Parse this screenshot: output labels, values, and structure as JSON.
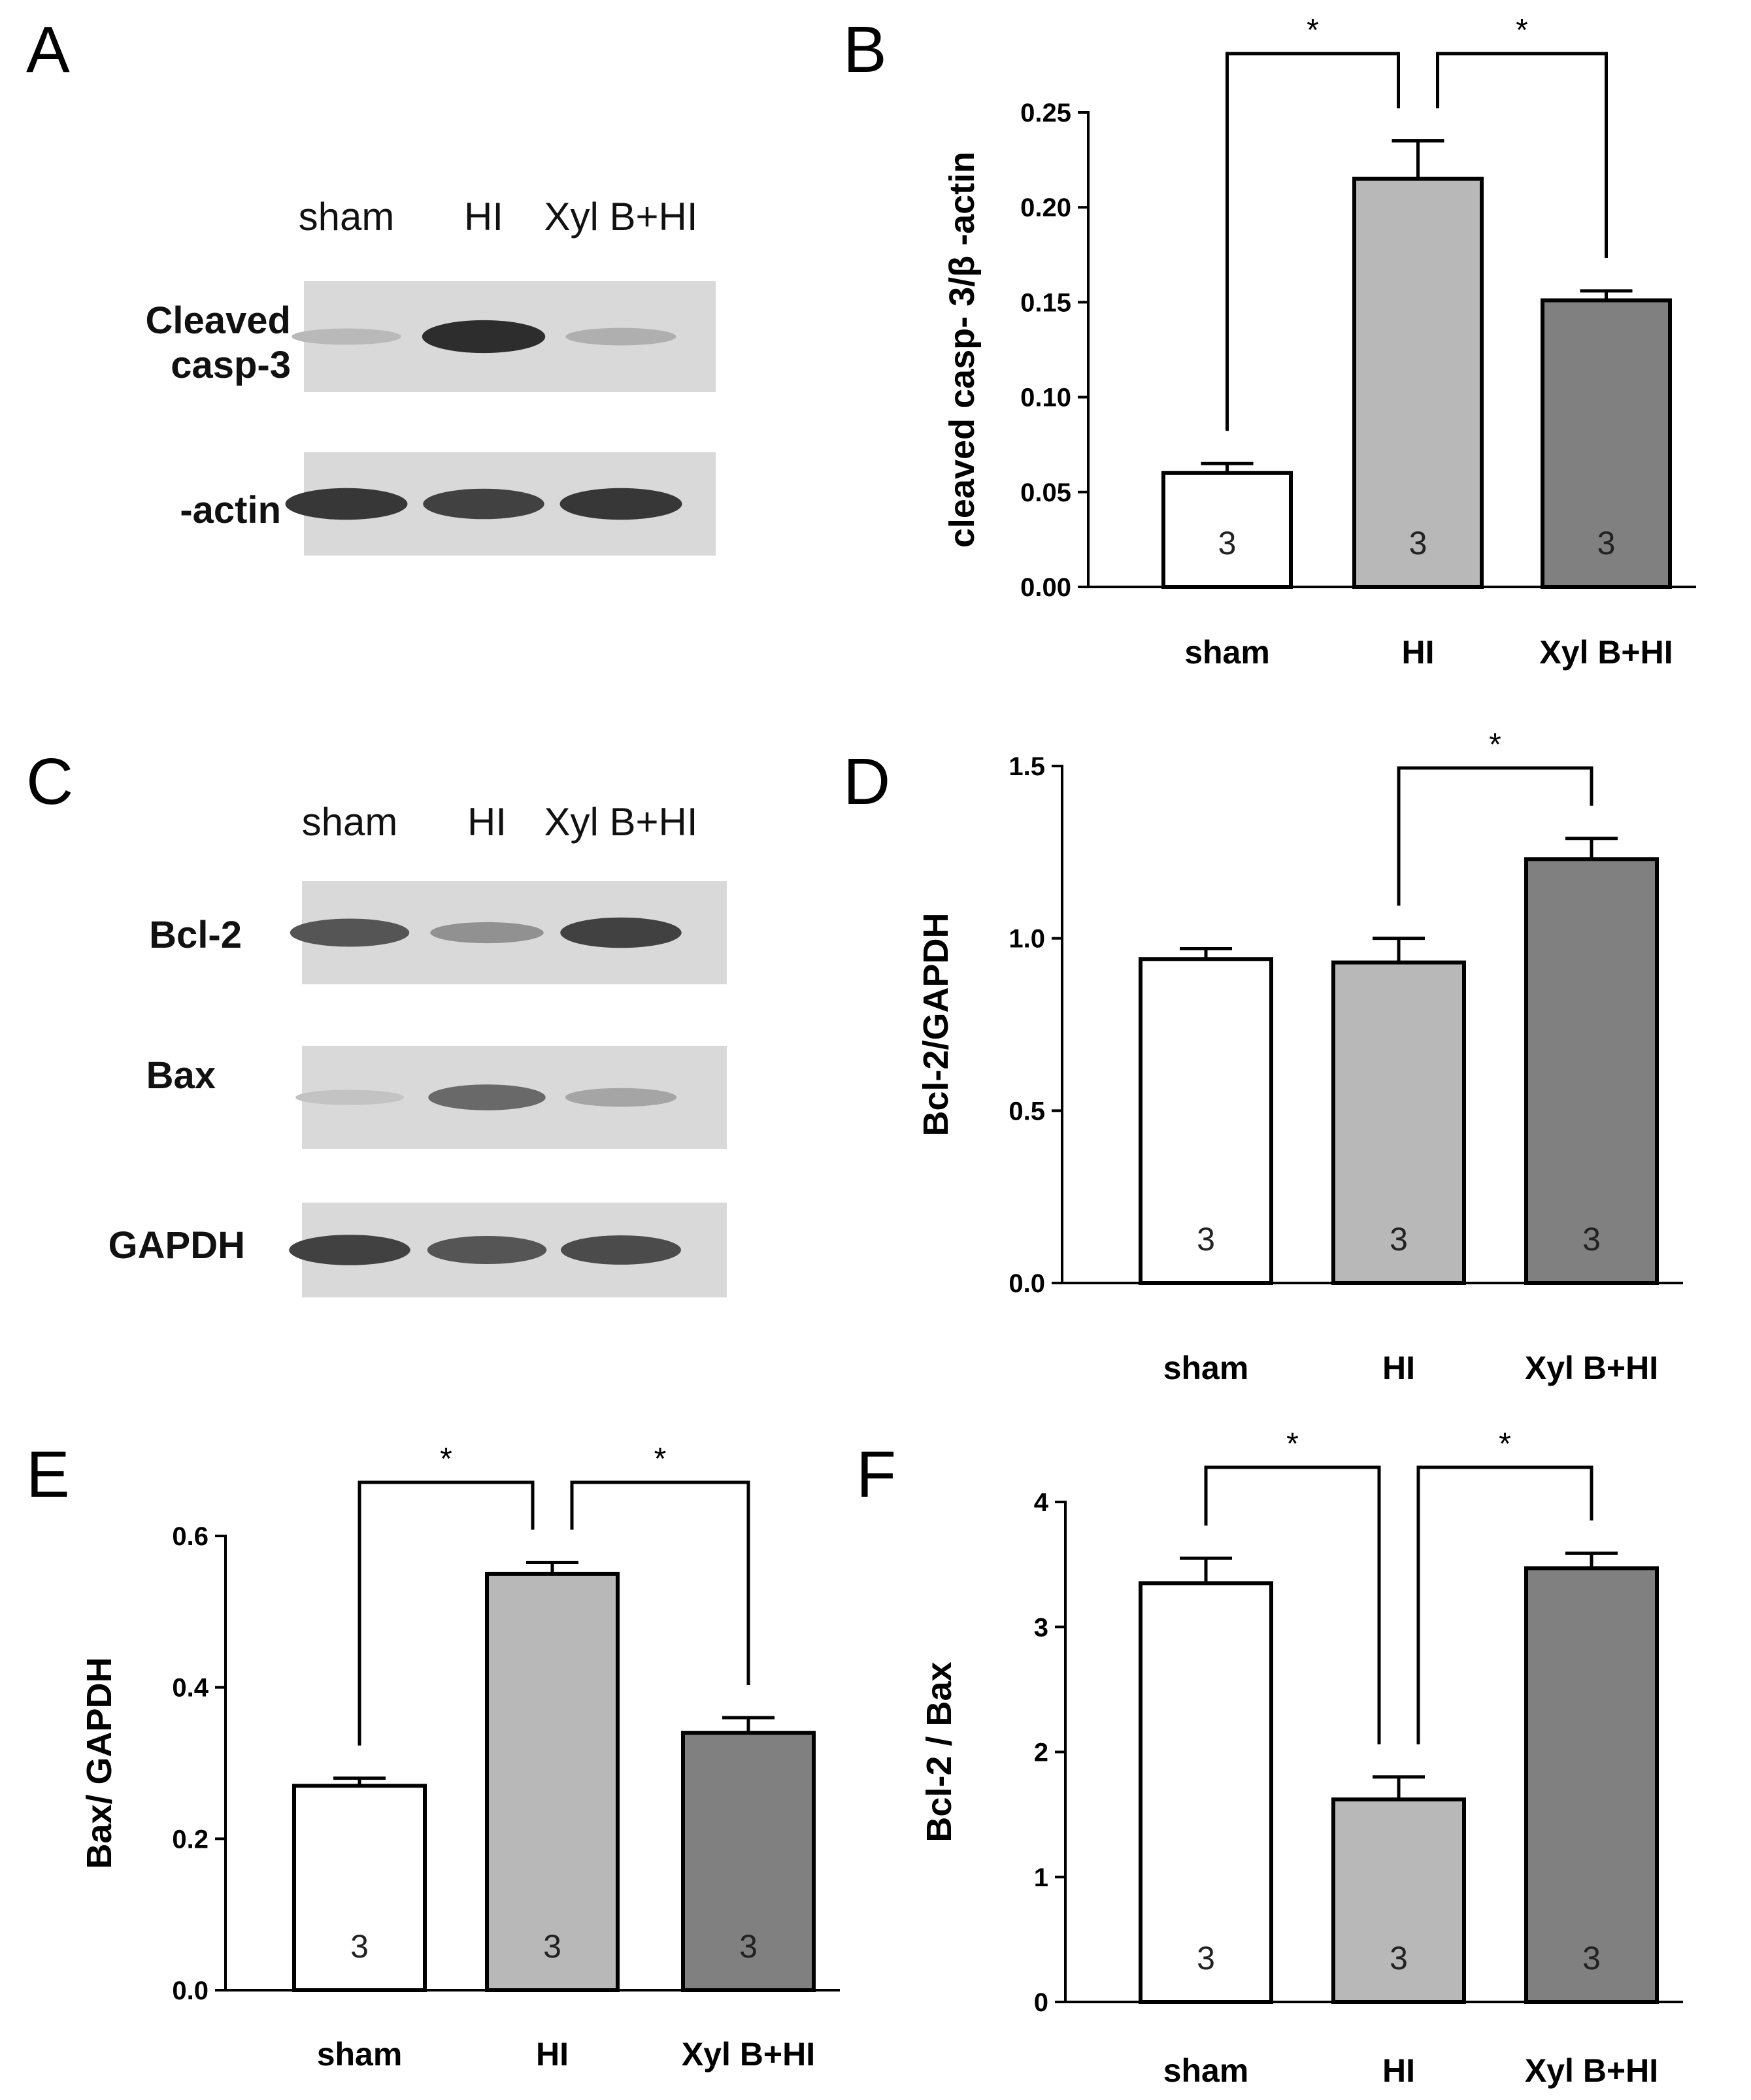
{
  "panels": [
    {
      "id": "A",
      "label": "A"
    },
    {
      "id": "B",
      "label": "B"
    },
    {
      "id": "C",
      "label": "C"
    },
    {
      "id": "D",
      "label": "D"
    },
    {
      "id": "E",
      "label": "E"
    },
    {
      "id": "F",
      "label": "F"
    }
  ],
  "blots": [
    {
      "panel": "A",
      "lanes": [
        "sham",
        "HI",
        "Xyl B+HI"
      ],
      "rows": [
        {
          "label_lines": [
            "Cleaved",
            "casp-3"
          ],
          "intensity": [
            0.25,
            0.95,
            0.3
          ]
        },
        {
          "label_lines": [
            "-actin"
          ],
          "intensity": [
            0.9,
            0.85,
            0.9
          ]
        }
      ]
    },
    {
      "panel": "C",
      "lanes": [
        "sham",
        "HI",
        "Xyl B+HI"
      ],
      "rows": [
        {
          "label_lines": [
            "Bcl-2"
          ],
          "intensity": [
            0.75,
            0.45,
            0.85
          ]
        },
        {
          "label_lines": [
            "Bax"
          ],
          "intensity": [
            0.2,
            0.65,
            0.35
          ]
        },
        {
          "label_lines": [
            "GAPDH"
          ],
          "intensity": [
            0.85,
            0.75,
            0.8
          ]
        }
      ]
    }
  ],
  "chart_data": [
    {
      "panel": "B",
      "type": "bar",
      "categories": [
        "sham",
        "HI",
        "Xyl B+HI"
      ],
      "values": [
        0.06,
        0.215,
        0.151
      ],
      "errors": [
        0.005,
        0.02,
        0.005
      ],
      "n_labels": [
        "3",
        "3",
        "3"
      ],
      "ylabel": "cleaved casp- 3/β -actin",
      "ylim": [
        0,
        0.25
      ],
      "yticks": [
        "0.00",
        "0.05",
        "0.10",
        "0.15",
        "0.20",
        "0.25"
      ],
      "bar_colors": [
        "#ffffff",
        "#b8b8b8",
        "#808080"
      ],
      "significance": [
        {
          "from": 0,
          "to": 1,
          "label": "*"
        },
        {
          "from": 1,
          "to": 2,
          "label": "*"
        }
      ]
    },
    {
      "panel": "D",
      "type": "bar",
      "categories": [
        "sham",
        "HI",
        "Xyl B+HI"
      ],
      "values": [
        0.94,
        0.93,
        1.23
      ],
      "errors": [
        0.03,
        0.07,
        0.06
      ],
      "n_labels": [
        "3",
        "3",
        "3"
      ],
      "ylabel": "Bcl-2/GAPDH",
      "ylim": [
        0,
        1.5
      ],
      "yticks": [
        "0.0",
        "0.5",
        "1.0",
        "1.5"
      ],
      "bar_colors": [
        "#ffffff",
        "#b8b8b8",
        "#808080"
      ],
      "significance": [
        {
          "from": 1,
          "to": 2,
          "label": "*"
        }
      ]
    },
    {
      "panel": "E",
      "type": "bar",
      "categories": [
        "sham",
        "HI",
        "Xyl B+HI"
      ],
      "values": [
        0.27,
        0.55,
        0.34
      ],
      "errors": [
        0.01,
        0.015,
        0.02
      ],
      "n_labels": [
        "3",
        "3",
        "3"
      ],
      "ylabel": "Bax/ GAPDH",
      "ylim": [
        0,
        0.6
      ],
      "yticks": [
        "0.0",
        "0.2",
        "0.4",
        "0.6"
      ],
      "bar_colors": [
        "#ffffff",
        "#b8b8b8",
        "#808080"
      ],
      "significance": [
        {
          "from": 0,
          "to": 1,
          "label": "*"
        },
        {
          "from": 1,
          "to": 2,
          "label": "*"
        }
      ]
    },
    {
      "panel": "F",
      "type": "bar",
      "categories": [
        "sham",
        "HI",
        "Xyl B+HI"
      ],
      "values": [
        3.35,
        1.62,
        3.47
      ],
      "errors": [
        0.2,
        0.18,
        0.12
      ],
      "n_labels": [
        "3",
        "3",
        "3"
      ],
      "ylabel": "Bcl-2 / Bax",
      "ylim": [
        0,
        4
      ],
      "yticks": [
        "0",
        "1",
        "2",
        "3",
        "4"
      ],
      "bar_colors": [
        "#ffffff",
        "#b8b8b8",
        "#808080"
      ],
      "significance": [
        {
          "from": 0,
          "to": 1,
          "label": "*"
        },
        {
          "from": 1,
          "to": 2,
          "label": "*"
        }
      ]
    }
  ]
}
